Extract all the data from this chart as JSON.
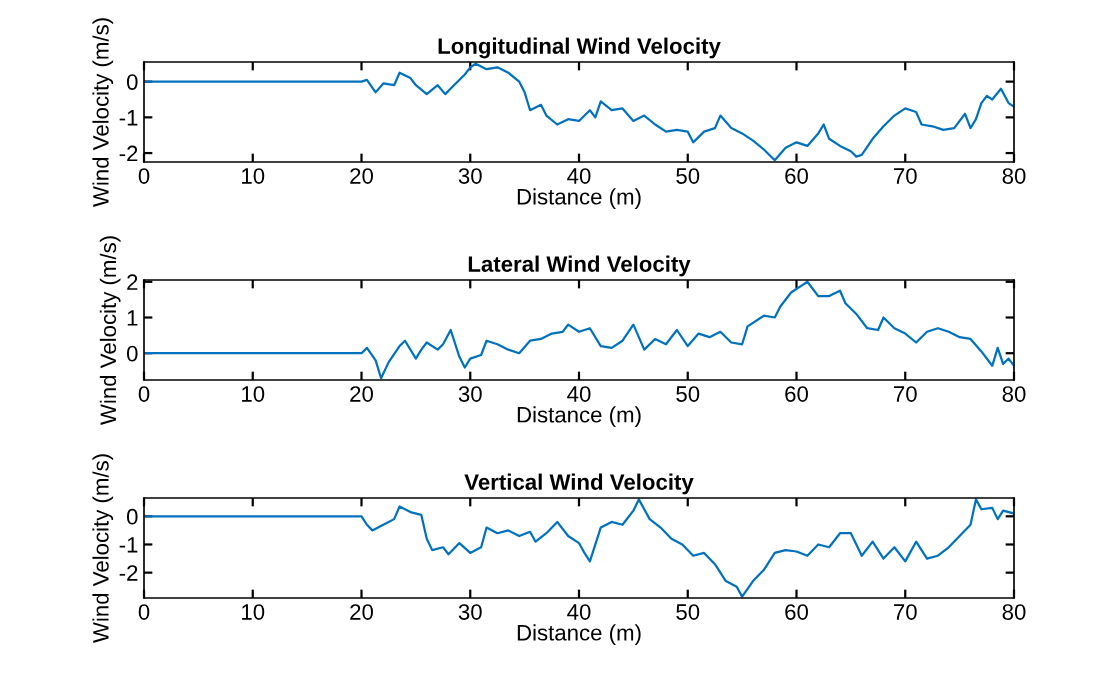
{
  "chart_data": [
    {
      "type": "line",
      "title": "Longitudinal Wind Velocity",
      "xlabel": "Distance (m)",
      "ylabel": "Wind Velocity (m/s)",
      "xlim": [
        0,
        80
      ],
      "xticks": [
        0,
        10,
        20,
        30,
        40,
        50,
        60,
        70,
        80
      ],
      "ylim": [
        -2.25,
        0.55
      ],
      "yticks": [
        -2,
        -1,
        0
      ],
      "grid": false,
      "marker": "none",
      "line_style": "solid",
      "series": [
        {
          "color": "#0072bd",
          "x": [
            0,
            20,
            20.5,
            21.3,
            22,
            23,
            23.5,
            24.5,
            25,
            26,
            27,
            27.7,
            28.5,
            29.5,
            30,
            30.5,
            31.5,
            32.5,
            33.5,
            34.5,
            35,
            35.5,
            36.5,
            37,
            38,
            39,
            40,
            41,
            41.5,
            42,
            43,
            44,
            45,
            46,
            47,
            48,
            49,
            50,
            50.5,
            51.5,
            52.5,
            53,
            54,
            55,
            56,
            57,
            58,
            59,
            60,
            61,
            62,
            62.5,
            63,
            64,
            65,
            65.5,
            66,
            67,
            68,
            69,
            70,
            71,
            71.5,
            72.5,
            73.5,
            74.5,
            75.5,
            76,
            76.5,
            77,
            77.5,
            78,
            78.8,
            79.5,
            80
          ],
          "values": [
            0,
            0,
            0.05,
            -0.3,
            -0.05,
            -0.1,
            0.25,
            0.1,
            -0.1,
            -0.35,
            -0.1,
            -0.35,
            -0.1,
            0.2,
            0.4,
            0.5,
            0.35,
            0.4,
            0.25,
            0,
            -0.3,
            -0.8,
            -0.65,
            -0.95,
            -1.2,
            -1.05,
            -1.1,
            -0.8,
            -1.0,
            -0.55,
            -0.8,
            -0.75,
            -1.1,
            -0.95,
            -1.2,
            -1.4,
            -1.35,
            -1.4,
            -1.7,
            -1.4,
            -1.3,
            -0.95,
            -1.3,
            -1.45,
            -1.65,
            -1.9,
            -2.2,
            -1.85,
            -1.7,
            -1.8,
            -1.45,
            -1.2,
            -1.6,
            -1.8,
            -1.95,
            -2.1,
            -2.05,
            -1.6,
            -1.25,
            -0.95,
            -0.75,
            -0.85,
            -1.2,
            -1.25,
            -1.35,
            -1.3,
            -0.9,
            -1.3,
            -1.05,
            -0.6,
            -0.4,
            -0.5,
            -0.2,
            -0.6,
            -0.7
          ]
        }
      ]
    },
    {
      "type": "line",
      "title": "Lateral Wind Velocity",
      "xlabel": "Distance (m)",
      "ylabel": "Wind Velocity (m/s)",
      "xlim": [
        0,
        80
      ],
      "xticks": [
        0,
        10,
        20,
        30,
        40,
        50,
        60,
        70,
        80
      ],
      "ylim": [
        -0.75,
        2.05
      ],
      "yticks": [
        0,
        1,
        2
      ],
      "grid": false,
      "marker": "none",
      "line_style": "solid",
      "series": [
        {
          "color": "#0072bd",
          "x": [
            0,
            20,
            20.5,
            21.3,
            21.8,
            22.5,
            23.5,
            24,
            25,
            25.5,
            26,
            27,
            27.5,
            28.2,
            29,
            29.5,
            30,
            31,
            31.5,
            32.5,
            33.5,
            34.5,
            35.5,
            36.5,
            37.5,
            38.5,
            39,
            40,
            41,
            42,
            43,
            44,
            45,
            46,
            47,
            48,
            49,
            50,
            51,
            52,
            53,
            54,
            55,
            55.5,
            57,
            58,
            58.5,
            59.5,
            60.5,
            61,
            62,
            63,
            64,
            64.5,
            65.5,
            66.5,
            67.5,
            68,
            69,
            70,
            71,
            72,
            73,
            74,
            75,
            76,
            77,
            78,
            78.5,
            79,
            79.5,
            80
          ],
          "values": [
            0,
            0,
            0.15,
            -0.2,
            -0.7,
            -0.25,
            0.2,
            0.35,
            -0.15,
            0.1,
            0.3,
            0.1,
            0.25,
            0.65,
            -0.1,
            -0.4,
            -0.15,
            -0.05,
            0.35,
            0.25,
            0.1,
            0.0,
            0.35,
            0.4,
            0.55,
            0.6,
            0.8,
            0.6,
            0.7,
            0.2,
            0.15,
            0.35,
            0.8,
            0.1,
            0.4,
            0.25,
            0.65,
            0.2,
            0.55,
            0.45,
            0.6,
            0.3,
            0.25,
            0.75,
            1.05,
            1.0,
            1.3,
            1.7,
            1.9,
            2.0,
            1.6,
            1.6,
            1.75,
            1.4,
            1.1,
            0.7,
            0.65,
            1.0,
            0.7,
            0.55,
            0.3,
            0.6,
            0.7,
            0.6,
            0.45,
            0.4,
            0.05,
            -0.35,
            0.15,
            -0.3,
            -0.15,
            -0.35
          ]
        }
      ]
    },
    {
      "type": "line",
      "title": "Vertical Wind Velocity",
      "xlabel": "Distance (m)",
      "ylabel": "Wind Velocity (m/s)",
      "xlim": [
        0,
        80
      ],
      "xticks": [
        0,
        10,
        20,
        30,
        40,
        50,
        60,
        70,
        80
      ],
      "ylim": [
        -2.9,
        0.65
      ],
      "yticks": [
        -2,
        -1,
        0
      ],
      "grid": false,
      "marker": "none",
      "line_style": "solid",
      "series": [
        {
          "color": "#0072bd",
          "x": [
            0,
            20,
            20.5,
            21,
            22,
            23,
            23.5,
            24.5,
            25.5,
            26,
            26.5,
            27.5,
            28,
            29,
            30,
            31,
            31.5,
            32.5,
            33.5,
            34.5,
            35.5,
            36,
            37,
            38,
            39,
            40,
            40.5,
            41,
            42,
            43,
            44,
            45,
            45.5,
            46.5,
            47.5,
            48.5,
            49.5,
            50.5,
            51.5,
            52.5,
            53,
            53.5,
            54.5,
            55,
            56,
            57,
            58,
            59,
            60,
            61,
            62,
            63,
            64,
            65,
            66,
            67,
            68,
            69,
            70,
            71,
            72,
            73,
            74,
            75,
            76,
            76.5,
            77,
            78,
            78.5,
            79,
            80
          ],
          "values": [
            0,
            0,
            -0.3,
            -0.5,
            -0.3,
            -0.1,
            0.35,
            0.15,
            0.05,
            -0.8,
            -1.2,
            -1.1,
            -1.35,
            -0.95,
            -1.3,
            -1.1,
            -0.4,
            -0.6,
            -0.5,
            -0.7,
            -0.55,
            -0.9,
            -0.6,
            -0.2,
            -0.7,
            -0.95,
            -1.3,
            -1.6,
            -0.4,
            -0.2,
            -0.3,
            0.2,
            0.6,
            -0.1,
            -0.4,
            -0.8,
            -1.0,
            -1.4,
            -1.3,
            -1.7,
            -2.0,
            -2.3,
            -2.5,
            -2.85,
            -2.3,
            -1.9,
            -1.3,
            -1.2,
            -1.25,
            -1.4,
            -1.0,
            -1.1,
            -0.6,
            -0.6,
            -1.4,
            -0.9,
            -1.5,
            -1.1,
            -1.6,
            -0.9,
            -1.5,
            -1.4,
            -1.1,
            -0.7,
            -0.3,
            0.6,
            0.25,
            0.3,
            -0.1,
            0.2,
            0.1
          ]
        }
      ]
    }
  ]
}
